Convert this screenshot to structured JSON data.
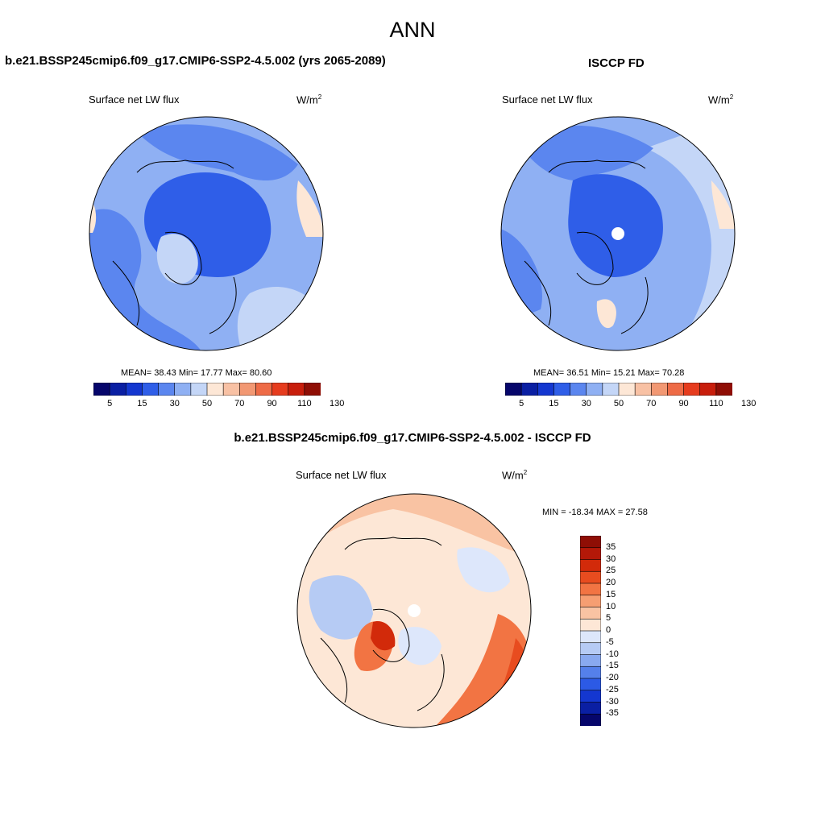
{
  "main_title": "ANN",
  "panel1": {
    "title": "b.e21.BSSP245cmip6.f09_g17.CMIP6-SSP2-4.5.002 (yrs 2065-2089)",
    "variable": "Surface net LW flux",
    "units_base": "W/m",
    "units_exp": "2",
    "stats": "MEAN=  38.43  Min=  17.77  Max=  80.60",
    "colorbar_ticks": [
      "5",
      "15",
      "30",
      "50",
      "70",
      "90",
      "110",
      "130"
    ]
  },
  "panel2": {
    "title": "ISCCP FD",
    "variable": "Surface net LW flux",
    "units_base": "W/m",
    "units_exp": "2",
    "stats": "MEAN=  36.51  Min=  15.21  Max=  70.28",
    "colorbar_ticks": [
      "5",
      "15",
      "30",
      "50",
      "70",
      "90",
      "110",
      "130"
    ]
  },
  "panel3": {
    "title": "b.e21.BSSP245cmip6.f09_g17.CMIP6-SSP2-4.5.002 - ISCCP FD",
    "variable": "Surface net LW flux",
    "units_base": "W/m",
    "units_exp": "2",
    "minmax": "MIN = -18.34 MAX =  27.58",
    "colorbar_ticks": [
      "35",
      "30",
      "25",
      "20",
      "15",
      "10",
      "5",
      "0",
      "-5",
      "-10",
      "-15",
      "-20",
      "-25",
      "-30",
      "-35"
    ]
  },
  "colors": {
    "abs_scale": [
      "#06066b",
      "#0a1fa3",
      "#1437d0",
      "#2f5ee8",
      "#5b86ef",
      "#8fb0f3",
      "#c4d6f7",
      "#fde7d6",
      "#f8c1a4",
      "#f29873",
      "#ee6b46",
      "#e63c1e",
      "#c81e0c",
      "#8f0e05"
    ],
    "diff_scale": [
      "#8f0e05",
      "#b41808",
      "#d22a0a",
      "#e84c1f",
      "#f27443",
      "#f69e72",
      "#f9c3a3",
      "#fde7d6",
      "#dde7fb",
      "#b6cbf4",
      "#89a9ef",
      "#5580ea",
      "#2c5ae5",
      "#1437d0",
      "#0a1fa3",
      "#06066b"
    ]
  }
}
